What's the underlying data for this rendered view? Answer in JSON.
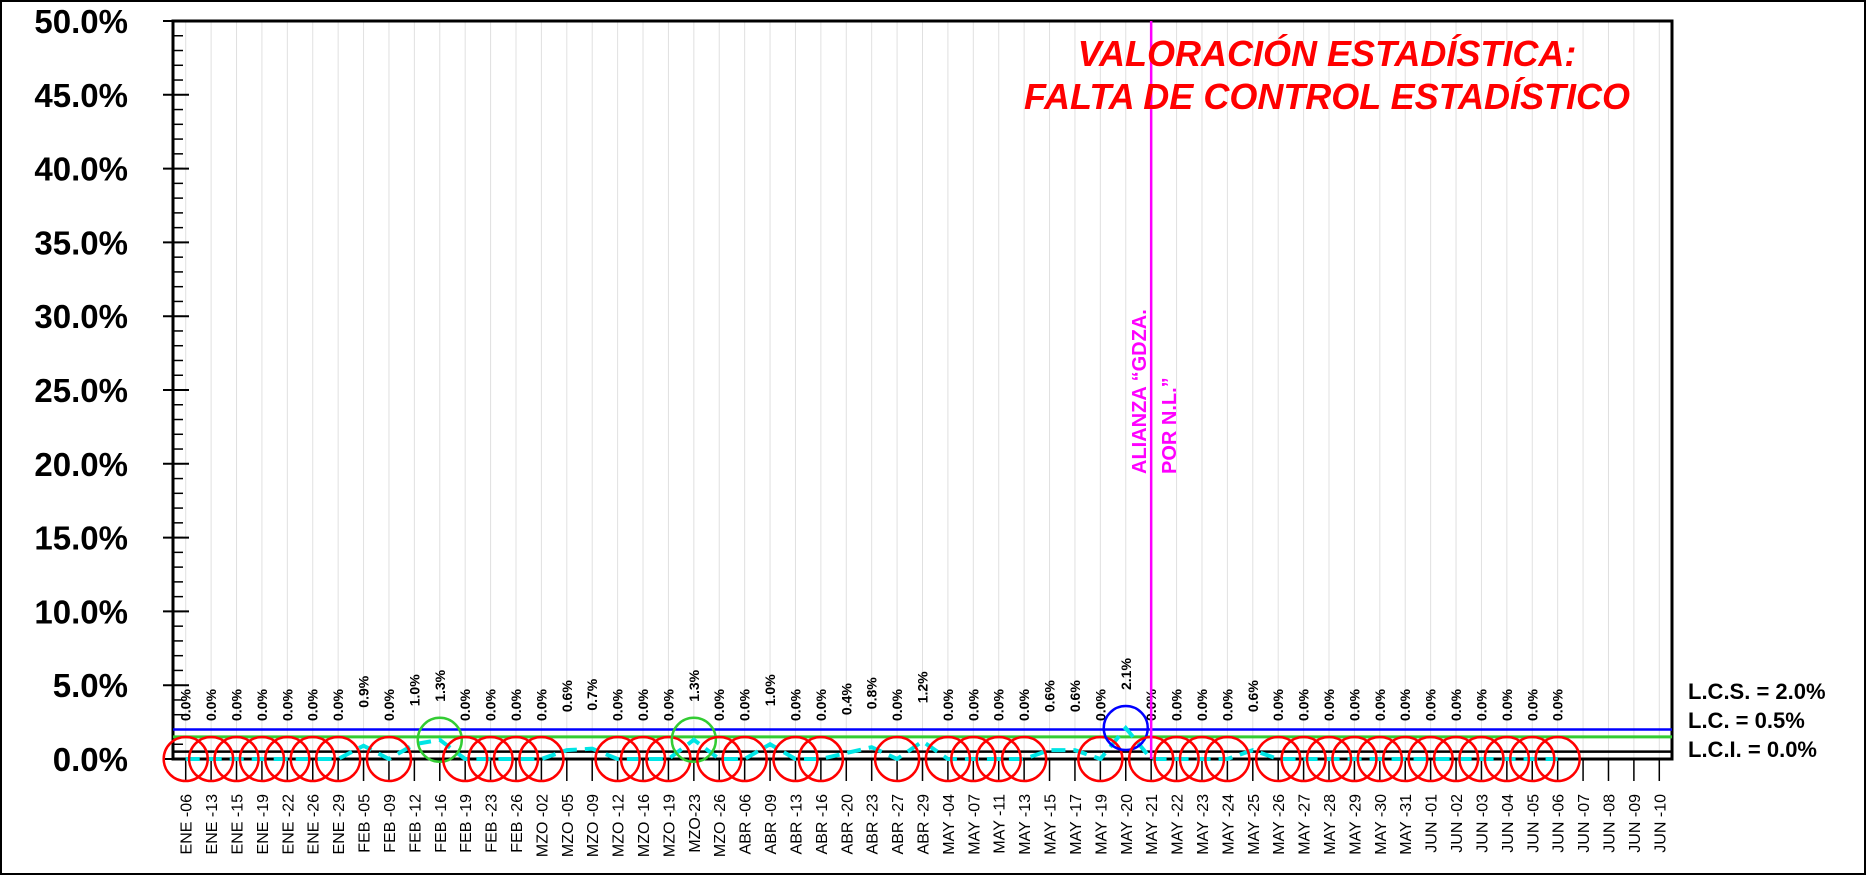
{
  "chart_data": {
    "type": "control",
    "title_lines": [
      "VALORACIÓN ESTADÍSTICA:",
      "FALTA DE CONTROL ESTADÍSTICO"
    ],
    "title_color": "#ff0000",
    "categories": [
      "ENE -06",
      "ENE -13",
      "ENE -15",
      "ENE -19",
      "ENE -22",
      "ENE -26",
      "ENE -29",
      "FEB -05",
      "FEB -09",
      "FEB -12",
      "FEB -16",
      "FEB -19",
      "FEB -23",
      "FEB -26",
      "MZO -02",
      "MZO -05",
      "MZO -09",
      "MZO -12",
      "MZO -16",
      "MZO -19",
      "MZO-23",
      "MZO -26",
      "ABR -06",
      "ABR -09",
      "ABR -13",
      "ABR -16",
      "ABR -20",
      "ABR -23",
      "ABR -27",
      "ABR -29",
      "MAY -04",
      "MAY -07",
      "MAY -11",
      "MAY -13",
      "MAY -15",
      "MAY -17",
      "MAY -19",
      "MAY -20",
      "MAY -21",
      "MAY -22",
      "MAY -23",
      "MAY -24",
      "MAY -25",
      "MAY -26",
      "MAY -27",
      "MAY -28",
      "MAY -29",
      "MAY -30",
      "MAY -31",
      "JUN -01",
      "JUN -02",
      "JUN -03",
      "JUN -04",
      "JUN -05",
      "JUN -06",
      "JUN -07",
      "JUN -08",
      "JUN -09",
      "JUN -10"
    ],
    "series": [
      {
        "color": "#00e5e5",
        "values": [
          0,
          0,
          0,
          0,
          0,
          0,
          0,
          0.9,
          0,
          1.0,
          1.3,
          0,
          0,
          0,
          0,
          0.6,
          0.7,
          0,
          0,
          0,
          1.3,
          0,
          0,
          1.0,
          0,
          0,
          0.4,
          0.8,
          0,
          1.2,
          0,
          0,
          0,
          0,
          0.6,
          0.6,
          0,
          2.1,
          0,
          0,
          0,
          0,
          0.6,
          0,
          0,
          0,
          0,
          0,
          0,
          0,
          0,
          0,
          0,
          0,
          0,
          null,
          null,
          null,
          null
        ],
        "value_labels": [
          "0.0%",
          "0.0%",
          "0.0%",
          "0.0%",
          "0.0%",
          "0.0%",
          "0.0%",
          "0.9%",
          "0.0%",
          "1.0%",
          "1.3%",
          "0.0%",
          "0.0%",
          "0.0%",
          "0.0%",
          "0.6%",
          "0.7%",
          "0.0%",
          "0.0%",
          "0.0%",
          "1.3%",
          "0.0%",
          "0.0%",
          "1.0%",
          "0.0%",
          "0.0%",
          "0.4%",
          "0.8%",
          "0.0%",
          "1.2%",
          "0.0%",
          "0.0%",
          "0.0%",
          "0.0%",
          "0.6%",
          "0.6%",
          "0.0%",
          "2.1%",
          "0.0%",
          "0.0%",
          "0.0%",
          "0.0%",
          "0.6%",
          "0.0%",
          "0.0%",
          "0.0%",
          "0.0%",
          "0.0%",
          "0.0%",
          "0.0%",
          "0.0%",
          "0.0%",
          "0.0%",
          "0.0%",
          "0.0%",
          null,
          null,
          null,
          null
        ],
        "marker_colors": [
          "#ff0000",
          "#ff0000",
          "#ff0000",
          "#ff0000",
          "#ff0000",
          "#ff0000",
          "#ff0000",
          null,
          "#ff0000",
          null,
          "#33cc33",
          "#ff0000",
          "#ff0000",
          "#ff0000",
          "#ff0000",
          null,
          null,
          "#ff0000",
          "#ff0000",
          "#ff0000",
          "#33cc33",
          "#ff0000",
          "#ff0000",
          null,
          "#ff0000",
          "#ff0000",
          null,
          null,
          "#ff0000",
          null,
          "#ff0000",
          "#ff0000",
          "#ff0000",
          "#ff0000",
          null,
          null,
          "#ff0000",
          "#0000ff",
          "#ff0000",
          "#ff0000",
          "#ff0000",
          "#ff0000",
          null,
          "#ff0000",
          "#ff0000",
          "#ff0000",
          "#ff0000",
          "#ff0000",
          "#ff0000",
          "#ff0000",
          "#ff0000",
          "#ff0000",
          "#ff0000",
          "#ff0000",
          "#ff0000",
          null,
          null,
          null,
          null
        ]
      }
    ],
    "control_lines": [
      {
        "label": "L.C.S. = 2.0%",
        "value": 2.0,
        "color": "#0000ff"
      },
      {
        "label": "L.C. = 0.5%",
        "value": 0.5,
        "color": "#000000"
      },
      {
        "label": "L.C.I. = 0.0%",
        "value": 0.0,
        "color": "#000000"
      }
    ],
    "extra_lines": [
      {
        "value": 1.5,
        "color": "#33cc33"
      }
    ],
    "vline": {
      "category": "MAY -21",
      "color": "#ff00ff",
      "label_lines": [
        "ALIANZA “GDZA.",
        "POR N.L.”"
      ]
    },
    "ylim": [
      0,
      50
    ],
    "yticks": [
      {
        "value": 0,
        "label": "0.0%"
      },
      {
        "value": 5,
        "label": "5.0%"
      },
      {
        "value": 10,
        "label": "10.0%"
      },
      {
        "value": 15,
        "label": "15.0%"
      },
      {
        "value": 20,
        "label": "20.0%"
      },
      {
        "value": 25,
        "label": "25.0%"
      },
      {
        "value": 30,
        "label": "30.0%"
      },
      {
        "value": 35,
        "label": "35.0%"
      },
      {
        "value": 40,
        "label": "40.0%"
      },
      {
        "value": 45,
        "label": "45.0%"
      },
      {
        "value": 50,
        "label": "50.0%"
      }
    ],
    "minor_step": 1,
    "grid": true
  }
}
